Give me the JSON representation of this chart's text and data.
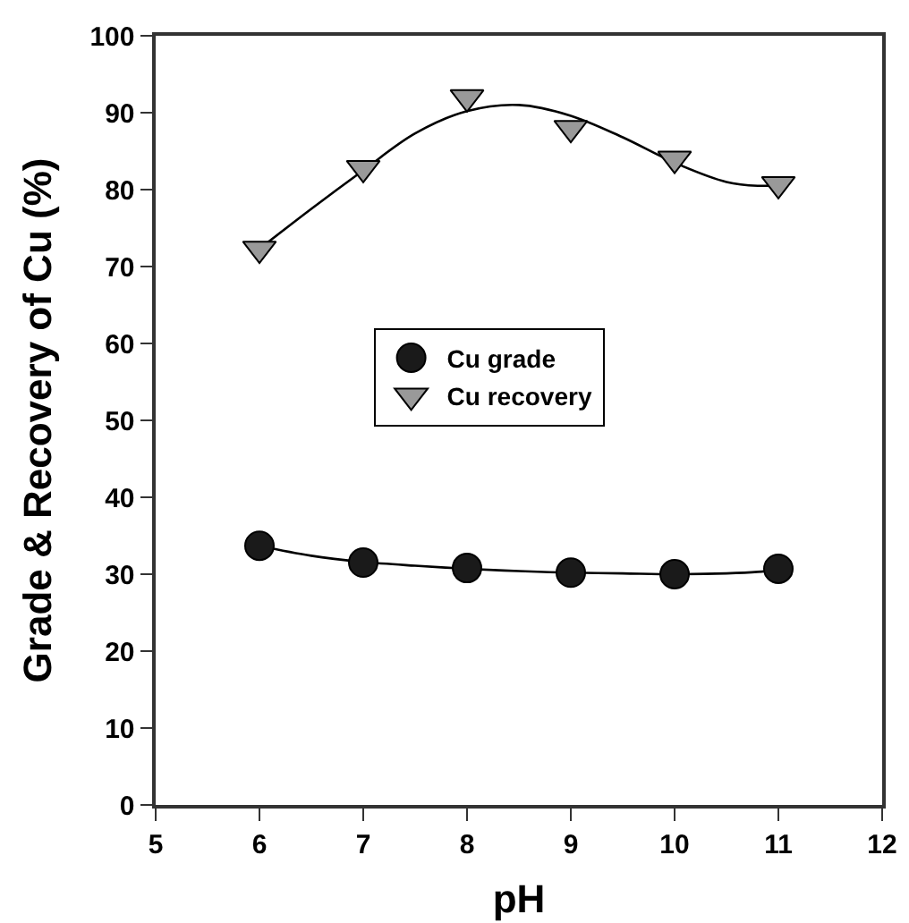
{
  "chart_data": {
    "type": "scatter",
    "xlabel": "pH",
    "ylabel": "Grade & Recovery of Cu (%)",
    "xlim": [
      5,
      12
    ],
    "xticks": [
      5,
      6,
      7,
      8,
      9,
      10,
      11,
      12
    ],
    "ylim": [
      0,
      100
    ],
    "yticks": [
      0,
      10,
      20,
      30,
      40,
      50,
      60,
      70,
      80,
      90,
      100
    ],
    "grid": false,
    "legend": "center",
    "series": [
      {
        "type": "line",
        "color": "#000000",
        "marker": "none",
        "line_style": "solid",
        "x": [
          6,
          6.5,
          7,
          7.5,
          8,
          8.5,
          9,
          9.5,
          10,
          10.5,
          10.8,
          11
        ],
        "values": [
          33.7,
          32.4,
          31.6,
          31.1,
          30.7,
          30.4,
          30.2,
          30.1,
          30.0,
          30.1,
          30.3,
          30.6
        ]
      },
      {
        "type": "line",
        "color": "#000000",
        "marker": "none",
        "line_style": "solid",
        "x": [
          6,
          6.5,
          7,
          7.5,
          8,
          8.5,
          9,
          9.5,
          10,
          10.5,
          10.8,
          11
        ],
        "values": [
          72.3,
          77.5,
          82.5,
          87.3,
          90.2,
          91,
          89.6,
          86.8,
          83.5,
          81,
          80.5,
          80.6
        ]
      },
      {
        "name": "Cu grade",
        "color": "#1a1a1a",
        "marker": "circle",
        "x": [
          6,
          7,
          8,
          9,
          10,
          11
        ],
        "values": [
          33.7,
          31.5,
          30.8,
          30.2,
          30.0,
          30.7
        ]
      },
      {
        "name": "Cu recovery",
        "color": "#999999",
        "marker": "triangle",
        "x": [
          6,
          7,
          8,
          9,
          10,
          11
        ],
        "values": [
          72.3,
          82.8,
          92,
          88,
          84,
          80.7
        ]
      }
    ]
  }
}
